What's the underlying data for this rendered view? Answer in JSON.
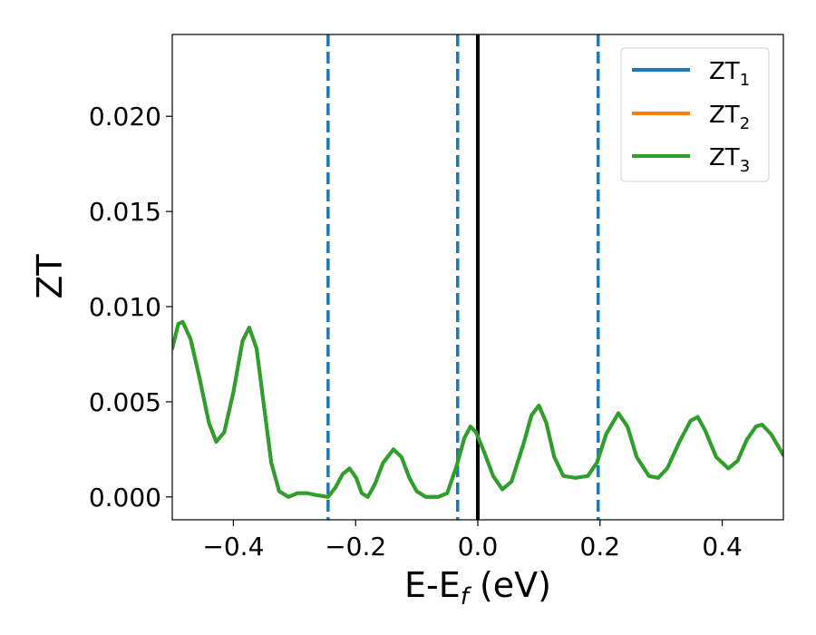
{
  "chart_data": {
    "type": "line",
    "xlabel": {
      "main": "E-E",
      "sub": "f",
      "suffix": " (eV)"
    },
    "ylabel": "ZT",
    "xlim": [
      -0.5,
      0.5
    ],
    "ylim": [
      -0.0012,
      0.0243
    ],
    "xticks": [
      -0.4,
      -0.2,
      0.0,
      0.2,
      0.4
    ],
    "xtick_labels": [
      "−0.4",
      "−0.2",
      "0.0",
      "0.2",
      "0.4"
    ],
    "yticks": [
      0.0,
      0.005,
      0.01,
      0.015,
      0.02
    ],
    "ytick_labels": [
      "0.000",
      "0.005",
      "0.010",
      "0.015",
      "0.020"
    ],
    "grid": false,
    "legend_placement": "top-right",
    "vlines": [
      {
        "x": -0.245,
        "style": "dashed",
        "color": "#1f77b4"
      },
      {
        "x": -0.033,
        "style": "dashed",
        "color": "#1f77b4"
      },
      {
        "x": 0.197,
        "style": "dashed",
        "color": "#1f77b4"
      },
      {
        "x": 0.0,
        "style": "solid",
        "color": "#000000"
      }
    ],
    "series": [
      {
        "name_main": "ZT",
        "name_sub": "1",
        "color": "#1f77b4",
        "same_as": "ZT3"
      },
      {
        "name_main": "ZT",
        "name_sub": "2",
        "color": "#ff7f0e",
        "same_as": "ZT3"
      },
      {
        "name_main": "ZT",
        "name_sub": "3",
        "color": "#2ca02c",
        "points": [
          [
            -0.5,
            0.0078
          ],
          [
            -0.49,
            0.0091
          ],
          [
            -0.483,
            0.0092
          ],
          [
            -0.47,
            0.0083
          ],
          [
            -0.455,
            0.0062
          ],
          [
            -0.44,
            0.0039
          ],
          [
            -0.428,
            0.0029
          ],
          [
            -0.415,
            0.0034
          ],
          [
            -0.4,
            0.0055
          ],
          [
            -0.385,
            0.0082
          ],
          [
            -0.374,
            0.0089
          ],
          [
            -0.362,
            0.0078
          ],
          [
            -0.35,
            0.0048
          ],
          [
            -0.338,
            0.0018
          ],
          [
            -0.325,
            0.0003
          ],
          [
            -0.31,
            0.0
          ],
          [
            -0.295,
            0.0002
          ],
          [
            -0.28,
            0.0002
          ],
          [
            -0.265,
            0.0001
          ],
          [
            -0.245,
            0.0
          ],
          [
            -0.233,
            0.0005
          ],
          [
            -0.221,
            0.0012
          ],
          [
            -0.21,
            0.0015
          ],
          [
            -0.199,
            0.001
          ],
          [
            -0.19,
            0.0002
          ],
          [
            -0.18,
            0.0
          ],
          [
            -0.168,
            0.0007
          ],
          [
            -0.155,
            0.0018
          ],
          [
            -0.138,
            0.0025
          ],
          [
            -0.125,
            0.0021
          ],
          [
            -0.112,
            0.001
          ],
          [
            -0.1,
            0.0003
          ],
          [
            -0.085,
            0.0
          ],
          [
            -0.065,
            0.0
          ],
          [
            -0.05,
            0.0002
          ],
          [
            -0.035,
            0.0016
          ],
          [
            -0.022,
            0.0031
          ],
          [
            -0.012,
            0.0037
          ],
          [
            -0.003,
            0.0034
          ],
          [
            0.01,
            0.0024
          ],
          [
            0.025,
            0.0011
          ],
          [
            0.04,
            0.0004
          ],
          [
            0.055,
            0.0008
          ],
          [
            0.075,
            0.0028
          ],
          [
            0.088,
            0.0043
          ],
          [
            0.1,
            0.0048
          ],
          [
            0.112,
            0.0039
          ],
          [
            0.125,
            0.0021
          ],
          [
            0.14,
            0.0011
          ],
          [
            0.16,
            0.001
          ],
          [
            0.18,
            0.0011
          ],
          [
            0.195,
            0.0018
          ],
          [
            0.21,
            0.0033
          ],
          [
            0.23,
            0.0044
          ],
          [
            0.245,
            0.0037
          ],
          [
            0.26,
            0.0021
          ],
          [
            0.28,
            0.0011
          ],
          [
            0.295,
            0.001
          ],
          [
            0.31,
            0.0015
          ],
          [
            0.33,
            0.0029
          ],
          [
            0.348,
            0.004
          ],
          [
            0.36,
            0.0042
          ],
          [
            0.372,
            0.0035
          ],
          [
            0.39,
            0.0021
          ],
          [
            0.41,
            0.0015
          ],
          [
            0.425,
            0.0019
          ],
          [
            0.44,
            0.003
          ],
          [
            0.455,
            0.0037
          ],
          [
            0.465,
            0.0038
          ],
          [
            0.48,
            0.0033
          ],
          [
            0.5,
            0.0022
          ]
        ]
      }
    ]
  }
}
